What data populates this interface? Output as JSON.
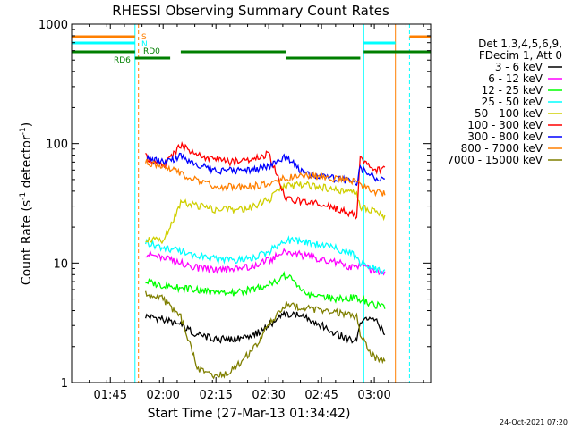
{
  "chart_data": {
    "type": "line",
    "title": "RHESSI Observing Summary Count Rates",
    "xlabel": "Start Time (27-Mar-13 01:34:42)",
    "ylabel": "Count Rate (s⁻¹ detector⁻¹)",
    "ylabel_parts": {
      "main": "Count Rate (s",
      "sup1": "-1",
      "mid": " detector",
      "sup2": "-1",
      "end": ")"
    },
    "yscale": "log",
    "ylim": [
      1,
      1000
    ],
    "xlim": [
      "01:34",
      "03:16"
    ],
    "x_ticks": [
      "01:45",
      "02:00",
      "02:15",
      "02:30",
      "02:45",
      "03:00"
    ],
    "y_ticks": [
      "1",
      "10",
      "100",
      "1000"
    ],
    "legend_header": [
      "Det 1,3,4,5,6,9,",
      "FDecim 1, Att 0"
    ],
    "footer_timestamp": "24-Oct-2021 07:20",
    "flags": [
      {
        "label": "S",
        "color": "#ff7f00"
      },
      {
        "label": "N",
        "color": "#00ffff"
      },
      {
        "label": "RD0",
        "color": "#007f00"
      },
      {
        "label": "RD6",
        "color": "#007f00"
      }
    ],
    "series": [
      {
        "name": "3 - 6 keV",
        "color": "#000000",
        "points": [
          [
            "01:55",
            3.6
          ],
          [
            "02:00",
            3.4
          ],
          [
            "02:05",
            3.0
          ],
          [
            "02:10",
            2.5
          ],
          [
            "02:15",
            2.3
          ],
          [
            "02:20",
            2.3
          ],
          [
            "02:25",
            2.4
          ],
          [
            "02:30",
            3.0
          ],
          [
            "02:35",
            3.8
          ],
          [
            "02:40",
            3.6
          ],
          [
            "02:45",
            3.0
          ],
          [
            "02:50",
            2.5
          ],
          [
            "02:55",
            2.2
          ],
          [
            "02:56",
            3.2
          ],
          [
            "03:00",
            3.5
          ],
          [
            "03:03",
            2.5
          ]
        ]
      },
      {
        "name": "6 - 12 keV",
        "color": "#ff00ff",
        "points": [
          [
            "01:55",
            12
          ],
          [
            "02:00",
            11
          ],
          [
            "02:05",
            10
          ],
          [
            "02:10",
            9
          ],
          [
            "02:15",
            8.8
          ],
          [
            "02:20",
            8.8
          ],
          [
            "02:25",
            9.3
          ],
          [
            "02:30",
            10.5
          ],
          [
            "02:35",
            12.5
          ],
          [
            "02:40",
            11.5
          ],
          [
            "02:45",
            10.8
          ],
          [
            "02:50",
            10
          ],
          [
            "02:55",
            9
          ],
          [
            "02:56",
            9.5
          ],
          [
            "03:00",
            8.5
          ],
          [
            "03:03",
            8.0
          ]
        ]
      },
      {
        "name": "12 - 25 keV",
        "color": "#00ff00",
        "points": [
          [
            "01:55",
            7
          ],
          [
            "02:00",
            6.5
          ],
          [
            "02:05",
            6.2
          ],
          [
            "02:10",
            6
          ],
          [
            "02:15",
            5.6
          ],
          [
            "02:20",
            5.6
          ],
          [
            "02:25",
            6.0
          ],
          [
            "02:30",
            6.5
          ],
          [
            "02:35",
            8.0
          ],
          [
            "02:40",
            5.5
          ],
          [
            "02:45",
            5.2
          ],
          [
            "02:50",
            5.0
          ],
          [
            "02:55",
            5.2
          ],
          [
            "02:56",
            5.0
          ],
          [
            "03:00",
            4.5
          ],
          [
            "03:03",
            4.2
          ]
        ]
      },
      {
        "name": "25 - 50 keV",
        "color": "#00ffff",
        "points": [
          [
            "01:55",
            15
          ],
          [
            "02:00",
            13.5
          ],
          [
            "02:05",
            12.5
          ],
          [
            "02:10",
            11.5
          ],
          [
            "02:15",
            10.8
          ],
          [
            "02:20",
            10.5
          ],
          [
            "02:25",
            11
          ],
          [
            "02:30",
            12.5
          ],
          [
            "02:35",
            15.5
          ],
          [
            "02:40",
            15
          ],
          [
            "02:45",
            14
          ],
          [
            "02:50",
            13
          ],
          [
            "02:55",
            11.5
          ],
          [
            "02:56",
            10
          ],
          [
            "03:00",
            9.0
          ],
          [
            "03:03",
            8.5
          ]
        ]
      },
      {
        "name": "50 - 100 keV",
        "color": "#cfcf00",
        "points": [
          [
            "01:55",
            16
          ],
          [
            "02:00",
            15
          ],
          [
            "02:05",
            32
          ],
          [
            "02:10",
            30
          ],
          [
            "02:15",
            28
          ],
          [
            "02:20",
            28
          ],
          [
            "02:25",
            29
          ],
          [
            "02:30",
            34
          ],
          [
            "02:35",
            44
          ],
          [
            "02:40",
            45
          ],
          [
            "02:45",
            43
          ],
          [
            "02:50",
            40
          ],
          [
            "02:55",
            38
          ],
          [
            "02:56",
            30
          ],
          [
            "03:00",
            27
          ],
          [
            "03:03",
            24
          ]
        ]
      },
      {
        "name": "100 - 300 keV",
        "color": "#ff0000",
        "points": [
          [
            "01:55",
            78
          ],
          [
            "02:00",
            64
          ],
          [
            "02:05",
            98
          ],
          [
            "02:10",
            80
          ],
          [
            "02:15",
            72
          ],
          [
            "02:20",
            70
          ],
          [
            "02:25",
            73
          ],
          [
            "02:30",
            82
          ],
          [
            "02:35",
            34
          ],
          [
            "02:40",
            33
          ],
          [
            "02:45",
            31
          ],
          [
            "02:50",
            28
          ],
          [
            "02:55",
            25
          ],
          [
            "02:56",
            78
          ],
          [
            "03:00",
            58
          ],
          [
            "03:03",
            62
          ]
        ]
      },
      {
        "name": "300 - 800 keV",
        "color": "#0000ff",
        "points": [
          [
            "01:55",
            75
          ],
          [
            "02:00",
            70
          ],
          [
            "02:05",
            78
          ],
          [
            "02:10",
            65
          ],
          [
            "02:15",
            60
          ],
          [
            "02:20",
            59
          ],
          [
            "02:25",
            60
          ],
          [
            "02:30",
            65
          ],
          [
            "02:35",
            78
          ],
          [
            "02:40",
            55
          ],
          [
            "02:45",
            53
          ],
          [
            "02:50",
            50
          ],
          [
            "02:55",
            48
          ],
          [
            "02:56",
            62
          ],
          [
            "03:00",
            52
          ],
          [
            "03:03",
            50
          ]
        ]
      },
      {
        "name": "800 - 7000 keV",
        "color": "#ff7f00",
        "points": [
          [
            "01:55",
            70
          ],
          [
            "02:00",
            65
          ],
          [
            "02:05",
            56
          ],
          [
            "02:10",
            48
          ],
          [
            "02:15",
            44
          ],
          [
            "02:20",
            43
          ],
          [
            "02:25",
            44
          ],
          [
            "02:30",
            46
          ],
          [
            "02:35",
            52
          ],
          [
            "02:40",
            53
          ],
          [
            "02:45",
            53
          ],
          [
            "02:50",
            50
          ],
          [
            "02:55",
            48
          ],
          [
            "02:56",
            45
          ],
          [
            "03:00",
            40
          ],
          [
            "03:03",
            38
          ]
        ]
      },
      {
        "name": "7000 - 15000 keV",
        "color": "#7f7f00",
        "points": [
          [
            "01:55",
            5.5
          ],
          [
            "02:00",
            5.0
          ],
          [
            "02:05",
            3.5
          ],
          [
            "02:10",
            1.3
          ],
          [
            "02:15",
            1.1
          ],
          [
            "02:20",
            1.3
          ],
          [
            "02:25",
            1.8
          ],
          [
            "02:30",
            3.0
          ],
          [
            "02:35",
            4.5
          ],
          [
            "02:40",
            4.2
          ],
          [
            "02:45",
            4.0
          ],
          [
            "02:50",
            3.8
          ],
          [
            "02:55",
            3.5
          ],
          [
            "02:56",
            2.5
          ],
          [
            "03:00",
            1.6
          ],
          [
            "03:03",
            1.5
          ]
        ]
      }
    ]
  }
}
